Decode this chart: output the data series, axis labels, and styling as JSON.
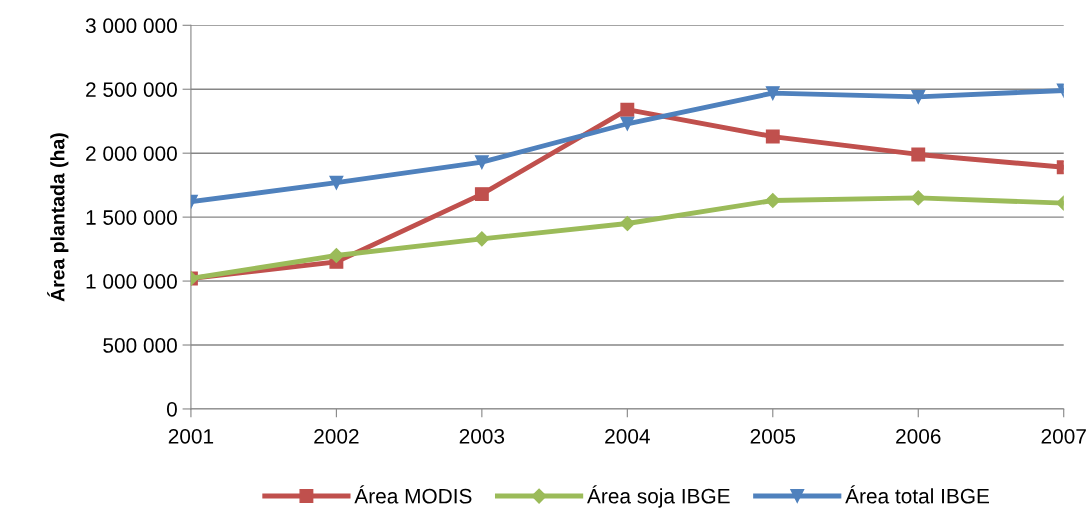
{
  "chart_data": {
    "type": "line",
    "ylabel": "Área plantada (ha)",
    "categories": [
      "2001",
      "2002",
      "2003",
      "2004",
      "2005",
      "2006",
      "2007"
    ],
    "series": [
      {
        "name": "Área MODIS",
        "color": "#c0504d",
        "marker": "square",
        "values": [
          1020000,
          1150000,
          1680000,
          2340000,
          2130000,
          1990000,
          1890000
        ]
      },
      {
        "name": "Área soja IBGE",
        "color": "#9bbb59",
        "marker": "diamond",
        "values": [
          1020000,
          1200000,
          1330000,
          1450000,
          1630000,
          1650000,
          1610000
        ]
      },
      {
        "name": "Área total IBGE",
        "color": "#4f81bd",
        "marker": "triangle_down",
        "values": [
          1620000,
          1770000,
          1930000,
          2230000,
          2470000,
          2440000,
          2490000
        ]
      }
    ],
    "ylim": [
      0,
      3000000
    ],
    "yticks": [
      {
        "value": 0,
        "label": "0"
      },
      {
        "value": 500000,
        "label": "500 000"
      },
      {
        "value": 1000000,
        "label": "1 000 000"
      },
      {
        "value": 1500000,
        "label": "1 500 000"
      },
      {
        "value": 2000000,
        "label": "2 000 000"
      },
      {
        "value": 2500000,
        "label": "2 500 000"
      },
      {
        "value": 3000000,
        "label": "3 000 000"
      }
    ],
    "grid": "y",
    "legend": "bottom",
    "line_style": "solid"
  }
}
